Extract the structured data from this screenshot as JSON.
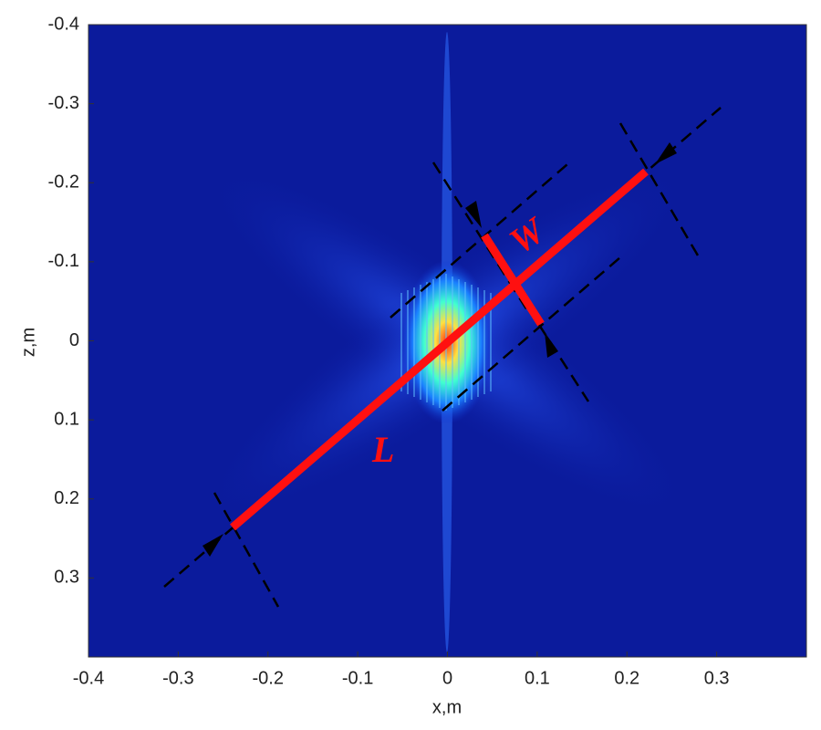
{
  "chart_data": {
    "type": "heatmap",
    "xlabel": "x,m",
    "ylabel": "z,m",
    "xlim": [
      -0.4,
      0.4
    ],
    "ylim": [
      -0.4,
      0.4
    ],
    "xticks": [
      -0.4,
      -0.3,
      -0.2,
      -0.1,
      0,
      0.1,
      0.2,
      0.3
    ],
    "yticks": [
      -0.4,
      -0.3,
      -0.2,
      -0.1,
      0,
      0.1,
      0.2,
      0.3
    ],
    "y_inverted": true,
    "annotations": [
      "L",
      "W"
    ]
  }
}
